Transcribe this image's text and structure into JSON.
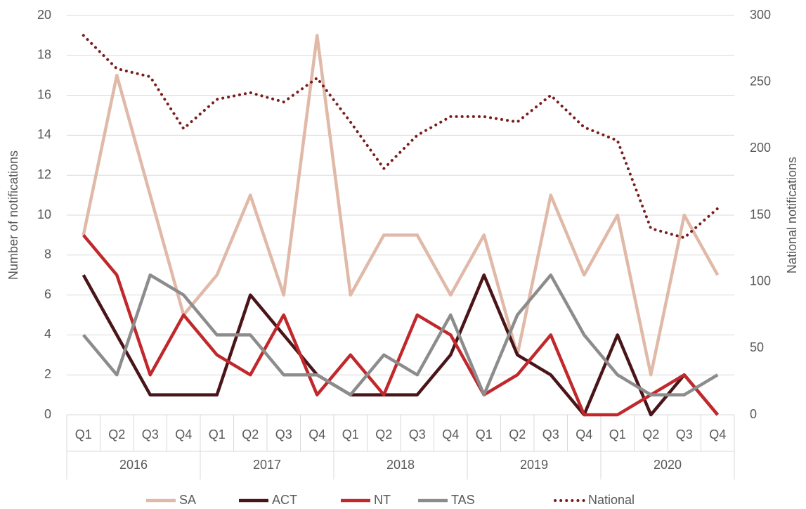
{
  "chart_data": {
    "type": "line",
    "categories": [
      "Q1",
      "Q2",
      "Q3",
      "Q4",
      "Q1",
      "Q2",
      "Q3",
      "Q4",
      "Q1",
      "Q2",
      "Q3",
      "Q4",
      "Q1",
      "Q2",
      "Q3",
      "Q4",
      "Q1",
      "Q2",
      "Q3",
      "Q4"
    ],
    "years": [
      "2016",
      "2017",
      "2018",
      "2019",
      "2020"
    ],
    "ylabel": "Number of notifications",
    "y2label": "National notifications",
    "ylim": [
      0,
      20
    ],
    "yticks": [
      0,
      2,
      4,
      6,
      8,
      10,
      12,
      14,
      16,
      18,
      20
    ],
    "y2lim": [
      0,
      300
    ],
    "y2ticks": [
      0,
      50,
      100,
      150,
      200,
      250,
      300
    ],
    "grid": true,
    "legend": "bottom",
    "series": [
      {
        "name": "SA",
        "color": "#e0b9a8",
        "values": [
          9,
          17,
          11,
          5,
          7,
          11,
          6,
          19,
          6,
          9,
          9,
          6,
          9,
          3,
          11,
          7,
          10,
          2,
          10,
          7
        ]
      },
      {
        "name": "ACT",
        "color": "#4a1519",
        "values": [
          7,
          4,
          1,
          1,
          1,
          6,
          4,
          2,
          1,
          1,
          1,
          3,
          7,
          3,
          2,
          0,
          4,
          0,
          2,
          0
        ]
      },
      {
        "name": "NT",
        "color": "#c0282c",
        "values": [
          9,
          7,
          2,
          5,
          3,
          2,
          5,
          1,
          3,
          1,
          5,
          4,
          1,
          2,
          4,
          0,
          0,
          1,
          2,
          0
        ]
      },
      {
        "name": "TAS",
        "color": "#8c8c8c",
        "values": [
          4,
          2,
          7,
          6,
          4,
          4,
          2,
          2,
          1,
          3,
          2,
          5,
          1,
          5,
          7,
          4,
          2,
          1,
          1,
          2
        ]
      },
      {
        "name": "National",
        "color": "#7b1c1c",
        "axis": "y2",
        "dashed": true,
        "values": [
          285,
          260,
          254,
          215,
          237,
          242,
          235,
          253,
          220,
          185,
          210,
          224,
          224,
          220,
          240,
          216,
          206,
          140,
          133,
          155
        ]
      }
    ]
  }
}
